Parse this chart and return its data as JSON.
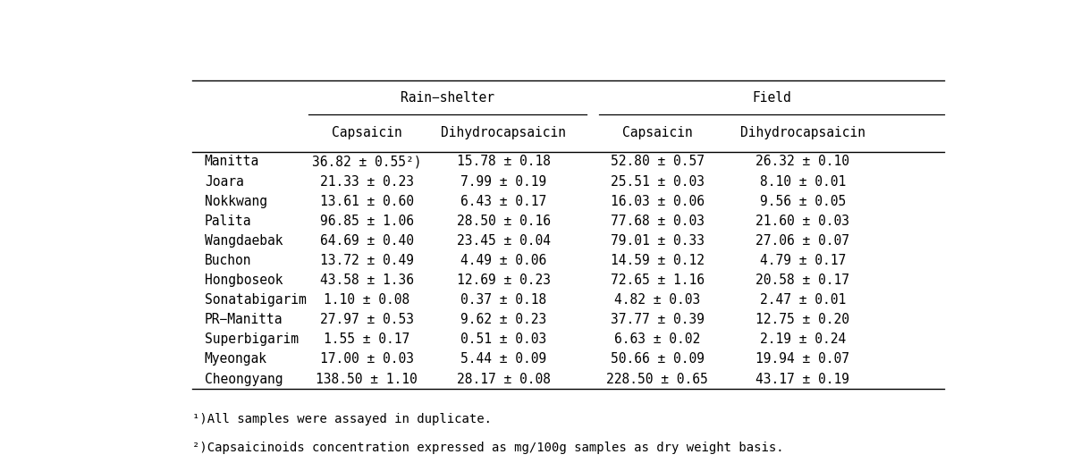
{
  "col_header_row1_rain": "Rain−shelter",
  "col_header_row1_field": "Field",
  "col_header_row2": [
    "Capsaicin",
    "Dihydrocapsaicin",
    "Capsaicin",
    "Dihydrocapsaicin"
  ],
  "rows": [
    [
      "Manitta",
      "36.82 ± 0.55²)",
      "15.78 ± 0.18",
      "52.80 ± 0.57",
      "26.32 ± 0.10"
    ],
    [
      "Joara",
      "21.33 ± 0.23",
      "7.99 ± 0.19",
      "25.51 ± 0.03",
      "8.10 ± 0.01"
    ],
    [
      "Nokkwang",
      "13.61 ± 0.60",
      "6.43 ± 0.17",
      "16.03 ± 0.06",
      "9.56 ± 0.05"
    ],
    [
      "Palita",
      "96.85 ± 1.06",
      "28.50 ± 0.16",
      "77.68 ± 0.03",
      "21.60 ± 0.03"
    ],
    [
      "Wangdaebak",
      "64.69 ± 0.40",
      "23.45 ± 0.04",
      "79.01 ± 0.33",
      "27.06 ± 0.07"
    ],
    [
      "Buchon",
      "13.72 ± 0.49",
      "4.49 ± 0.06",
      "14.59 ± 0.12",
      "4.79 ± 0.17"
    ],
    [
      "Hongboseok",
      "43.58 ± 1.36",
      "12.69 ± 0.23",
      "72.65 ± 1.16",
      "20.58 ± 0.17"
    ],
    [
      "Sonatabigarim",
      "1.10 ± 0.08",
      "0.37 ± 0.18",
      "4.82 ± 0.03",
      "2.47 ± 0.01"
    ],
    [
      "PR−Manitta",
      "27.97 ± 0.53",
      "9.62 ± 0.23",
      "37.77 ± 0.39",
      "12.75 ± 0.20"
    ],
    [
      "Superbigarim",
      "1.55 ± 0.17",
      "0.51 ± 0.03",
      "6.63 ± 0.02",
      "2.19 ± 0.24"
    ],
    [
      "Myeongak",
      "17.00 ± 0.03",
      "5.44 ± 0.09",
      "50.66 ± 0.09",
      "19.94 ± 0.07"
    ],
    [
      "Cheongyang",
      "138.50 ± 1.10",
      "28.17 ± 0.08",
      "228.50 ± 0.65",
      "43.17 ± 0.19"
    ]
  ],
  "footnote1": "¹)All samples were assayed in duplicate.",
  "footnote2": "²)Capsaicinoids concentration expressed as mg/100g samples as dry weight basis.",
  "bg_color": "#ffffff",
  "text_color": "#000000",
  "font_size": 10.5,
  "header_font_size": 10.5
}
